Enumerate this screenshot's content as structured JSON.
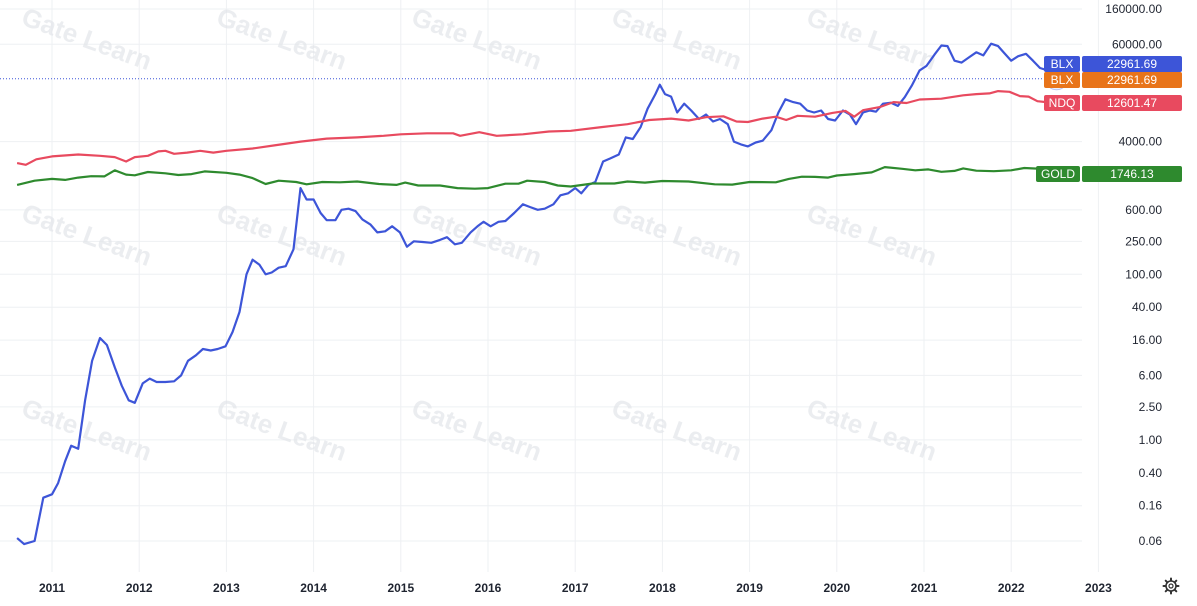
{
  "chart_data": {
    "type": "line",
    "title": "",
    "xlabel": "",
    "ylabel": "",
    "y_scale": "log",
    "grid": true,
    "watermark": "Gate Learn",
    "x_ticks": [
      "2011",
      "2012",
      "2013",
      "2014",
      "2015",
      "2016",
      "2017",
      "2018",
      "2019",
      "2020",
      "2021",
      "2022",
      "2023"
    ],
    "y_ticks": [
      {
        "value": 160000,
        "label": "160000.00"
      },
      {
        "value": 60000,
        "label": "60000.00"
      },
      {
        "value": 4000,
        "label": "4000.00"
      },
      {
        "value": 600,
        "label": "600.00"
      },
      {
        "value": 250,
        "label": "250.00"
      },
      {
        "value": 100,
        "label": "100.00"
      },
      {
        "value": 40,
        "label": "40.00"
      },
      {
        "value": 16,
        "label": "16.00"
      },
      {
        "value": 6,
        "label": "6.00"
      },
      {
        "value": 2.5,
        "label": "2.50"
      },
      {
        "value": 1,
        "label": "1.00"
      },
      {
        "value": 0.4,
        "label": "0.40"
      },
      {
        "value": 0.16,
        "label": "0.16"
      },
      {
        "value": 0.06,
        "label": "0.06"
      }
    ],
    "series": [
      {
        "name": "BLX",
        "color": "#3d55d8",
        "last_value_label": "22961.69",
        "points": [
          [
            2010.6,
            0.065
          ],
          [
            2010.68,
            0.055
          ],
          [
            2010.8,
            0.06
          ],
          [
            2010.9,
            0.2
          ],
          [
            2011.0,
            0.22
          ],
          [
            2011.07,
            0.3
          ],
          [
            2011.15,
            0.55
          ],
          [
            2011.22,
            0.85
          ],
          [
            2011.3,
            0.78
          ],
          [
            2011.38,
            3.0
          ],
          [
            2011.46,
            9.0
          ],
          [
            2011.55,
            17.0
          ],
          [
            2011.63,
            14.0
          ],
          [
            2011.72,
            7.5
          ],
          [
            2011.8,
            4.5
          ],
          [
            2011.88,
            3.0
          ],
          [
            2011.95,
            2.8
          ],
          [
            2012.04,
            4.8
          ],
          [
            2012.12,
            5.5
          ],
          [
            2012.2,
            5.0
          ],
          [
            2012.3,
            5.0
          ],
          [
            2012.4,
            5.1
          ],
          [
            2012.48,
            6.0
          ],
          [
            2012.56,
            9.0
          ],
          [
            2012.65,
            10.5
          ],
          [
            2012.73,
            12.5
          ],
          [
            2012.82,
            12.0
          ],
          [
            2012.9,
            12.5
          ],
          [
            2012.99,
            13.5
          ],
          [
            2013.07,
            20.0
          ],
          [
            2013.15,
            35.0
          ],
          [
            2013.23,
            100.0
          ],
          [
            2013.3,
            150.0
          ],
          [
            2013.38,
            130.0
          ],
          [
            2013.45,
            100.0
          ],
          [
            2013.52,
            105.0
          ],
          [
            2013.6,
            120.0
          ],
          [
            2013.68,
            125.0
          ],
          [
            2013.77,
            200.0
          ],
          [
            2013.85,
            1100.0
          ],
          [
            2013.92,
            800.0
          ],
          [
            2014.0,
            800.0
          ],
          [
            2014.08,
            550.0
          ],
          [
            2014.15,
            450.0
          ],
          [
            2014.25,
            450.0
          ],
          [
            2014.32,
            600.0
          ],
          [
            2014.4,
            620.0
          ],
          [
            2014.48,
            580.0
          ],
          [
            2014.56,
            460.0
          ],
          [
            2014.65,
            400.0
          ],
          [
            2014.73,
            320.0
          ],
          [
            2014.82,
            330.0
          ],
          [
            2014.9,
            380.0
          ],
          [
            2014.99,
            320.0
          ],
          [
            2015.07,
            215.0
          ],
          [
            2015.15,
            250.0
          ],
          [
            2015.25,
            245.0
          ],
          [
            2015.35,
            240.0
          ],
          [
            2015.45,
            260.0
          ],
          [
            2015.53,
            280.0
          ],
          [
            2015.62,
            230.0
          ],
          [
            2015.7,
            240.0
          ],
          [
            2015.8,
            320.0
          ],
          [
            2015.88,
            380.0
          ],
          [
            2015.95,
            430.0
          ],
          [
            2016.03,
            380.0
          ],
          [
            2016.12,
            430.0
          ],
          [
            2016.2,
            440.0
          ],
          [
            2016.3,
            550.0
          ],
          [
            2016.4,
            700.0
          ],
          [
            2016.48,
            650.0
          ],
          [
            2016.57,
            600.0
          ],
          [
            2016.65,
            620.0
          ],
          [
            2016.75,
            700.0
          ],
          [
            2016.83,
            900.0
          ],
          [
            2016.92,
            950.0
          ],
          [
            2017.0,
            1100.0
          ],
          [
            2017.07,
            950.0
          ],
          [
            2017.15,
            1200.0
          ],
          [
            2017.23,
            1300.0
          ],
          [
            2017.32,
            2300.0
          ],
          [
            2017.4,
            2500.0
          ],
          [
            2017.5,
            2800.0
          ],
          [
            2017.58,
            4500.0
          ],
          [
            2017.66,
            4300.0
          ],
          [
            2017.75,
            6000.0
          ],
          [
            2017.83,
            10000.0
          ],
          [
            2017.92,
            15000.0
          ],
          [
            2017.97,
            19500.0
          ],
          [
            2018.03,
            15000.0
          ],
          [
            2018.1,
            14000.0
          ],
          [
            2018.17,
            9000.0
          ],
          [
            2018.25,
            11500.0
          ],
          [
            2018.33,
            9500.0
          ],
          [
            2018.42,
            7500.0
          ],
          [
            2018.5,
            8500.0
          ],
          [
            2018.58,
            7000.0
          ],
          [
            2018.66,
            7500.0
          ],
          [
            2018.75,
            6500.0
          ],
          [
            2018.82,
            4000.0
          ],
          [
            2018.9,
            3700.0
          ],
          [
            2018.98,
            3500.0
          ],
          [
            2019.07,
            3900.0
          ],
          [
            2019.15,
            4100.0
          ],
          [
            2019.25,
            5500.0
          ],
          [
            2019.33,
            9000.0
          ],
          [
            2019.41,
            13000.0
          ],
          [
            2019.5,
            12000.0
          ],
          [
            2019.58,
            11500.0
          ],
          [
            2019.66,
            9500.0
          ],
          [
            2019.74,
            9000.0
          ],
          [
            2019.82,
            9500.0
          ],
          [
            2019.9,
            7500.0
          ],
          [
            2019.98,
            7200.0
          ],
          [
            2020.07,
            9500.0
          ],
          [
            2020.15,
            8500.0
          ],
          [
            2020.22,
            6500.0
          ],
          [
            2020.3,
            9000.0
          ],
          [
            2020.38,
            9500.0
          ],
          [
            2020.45,
            9200.0
          ],
          [
            2020.53,
            11500.0
          ],
          [
            2020.62,
            11800.0
          ],
          [
            2020.7,
            10800.0
          ],
          [
            2020.78,
            13800.0
          ],
          [
            2020.86,
            19000.0
          ],
          [
            2020.95,
            29000.0
          ],
          [
            2021.03,
            33000.0
          ],
          [
            2021.12,
            45000.0
          ],
          [
            2021.2,
            58000.0
          ],
          [
            2021.27,
            57000.0
          ],
          [
            2021.35,
            38000.0
          ],
          [
            2021.43,
            36000.0
          ],
          [
            2021.52,
            42000.0
          ],
          [
            2021.6,
            48000.0
          ],
          [
            2021.68,
            44000.0
          ],
          [
            2021.77,
            61000.0
          ],
          [
            2021.85,
            57000.0
          ],
          [
            2021.92,
            47000.0
          ],
          [
            2022.0,
            38000.0
          ],
          [
            2022.08,
            43000.0
          ],
          [
            2022.17,
            46000.0
          ],
          [
            2022.25,
            38000.0
          ],
          [
            2022.33,
            31000.0
          ],
          [
            2022.42,
            29000.0
          ],
          [
            2022.47,
            20000.0
          ],
          [
            2022.52,
            22961.69
          ]
        ]
      },
      {
        "name": "BLX",
        "color": "#e8741a",
        "last_value_label": "22961.69",
        "points": []
      },
      {
        "name": "NDQ",
        "color": "#e84a5f",
        "last_value_label": "12601.47",
        "points": [
          [
            2010.6,
            2200
          ],
          [
            2010.7,
            2100
          ],
          [
            2010.82,
            2450
          ],
          [
            2011.0,
            2650
          ],
          [
            2011.3,
            2800
          ],
          [
            2011.55,
            2700
          ],
          [
            2011.72,
            2600
          ],
          [
            2011.85,
            2300
          ],
          [
            2011.95,
            2600
          ],
          [
            2012.1,
            2700
          ],
          [
            2012.22,
            3050
          ],
          [
            2012.3,
            3100
          ],
          [
            2012.4,
            2850
          ],
          [
            2012.55,
            2950
          ],
          [
            2012.7,
            3100
          ],
          [
            2012.85,
            2950
          ],
          [
            2013.0,
            3100
          ],
          [
            2013.3,
            3300
          ],
          [
            2013.55,
            3600
          ],
          [
            2013.85,
            4000
          ],
          [
            2014.15,
            4350
          ],
          [
            2014.5,
            4500
          ],
          [
            2014.8,
            4700
          ],
          [
            2015.0,
            4900
          ],
          [
            2015.3,
            5050
          ],
          [
            2015.6,
            5050
          ],
          [
            2015.68,
            4700
          ],
          [
            2015.9,
            5200
          ],
          [
            2016.1,
            4700
          ],
          [
            2016.4,
            4900
          ],
          [
            2016.7,
            5300
          ],
          [
            2016.95,
            5400
          ],
          [
            2017.3,
            6000
          ],
          [
            2017.6,
            6500
          ],
          [
            2017.85,
            7300
          ],
          [
            2018.1,
            7600
          ],
          [
            2018.3,
            7200
          ],
          [
            2018.5,
            7900
          ],
          [
            2018.7,
            8100
          ],
          [
            2018.85,
            7000
          ],
          [
            2018.98,
            6900
          ],
          [
            2019.15,
            7600
          ],
          [
            2019.3,
            8000
          ],
          [
            2019.42,
            7300
          ],
          [
            2019.55,
            8200
          ],
          [
            2019.75,
            8000
          ],
          [
            2019.95,
            8900
          ],
          [
            2020.1,
            9400
          ],
          [
            2020.2,
            8000
          ],
          [
            2020.3,
            9600
          ],
          [
            2020.5,
            10500
          ],
          [
            2020.65,
            12000
          ],
          [
            2020.8,
            11700
          ],
          [
            2020.95,
            12900
          ],
          [
            2021.2,
            13200
          ],
          [
            2021.45,
            14500
          ],
          [
            2021.6,
            15000
          ],
          [
            2021.75,
            15300
          ],
          [
            2021.85,
            16300
          ],
          [
            2021.98,
            16000
          ],
          [
            2022.1,
            14200
          ],
          [
            2022.2,
            14000
          ],
          [
            2022.3,
            12300
          ],
          [
            2022.4,
            12000
          ],
          [
            2022.47,
            11200
          ],
          [
            2022.52,
            12601.47
          ]
        ]
      },
      {
        "name": "GOLD",
        "color": "#2e8a2e",
        "last_value_label": "1746.13",
        "points": [
          [
            2010.6,
            1200
          ],
          [
            2010.8,
            1350
          ],
          [
            2011.0,
            1420
          ],
          [
            2011.15,
            1380
          ],
          [
            2011.3,
            1470
          ],
          [
            2011.45,
            1530
          ],
          [
            2011.6,
            1520
          ],
          [
            2011.72,
            1800
          ],
          [
            2011.85,
            1600
          ],
          [
            2011.95,
            1570
          ],
          [
            2012.1,
            1720
          ],
          [
            2012.3,
            1660
          ],
          [
            2012.45,
            1580
          ],
          [
            2012.6,
            1620
          ],
          [
            2012.75,
            1750
          ],
          [
            2013.0,
            1680
          ],
          [
            2013.15,
            1600
          ],
          [
            2013.3,
            1450
          ],
          [
            2013.45,
            1230
          ],
          [
            2013.6,
            1350
          ],
          [
            2013.8,
            1300
          ],
          [
            2013.92,
            1220
          ],
          [
            2014.1,
            1300
          ],
          [
            2014.3,
            1290
          ],
          [
            2014.5,
            1320
          ],
          [
            2014.75,
            1230
          ],
          [
            2014.95,
            1200
          ],
          [
            2015.05,
            1280
          ],
          [
            2015.2,
            1180
          ],
          [
            2015.45,
            1180
          ],
          [
            2015.65,
            1100
          ],
          [
            2015.85,
            1080
          ],
          [
            2016.0,
            1100
          ],
          [
            2016.2,
            1240
          ],
          [
            2016.35,
            1240
          ],
          [
            2016.45,
            1350
          ],
          [
            2016.65,
            1300
          ],
          [
            2016.8,
            1180
          ],
          [
            2016.95,
            1150
          ],
          [
            2017.2,
            1250
          ],
          [
            2017.45,
            1250
          ],
          [
            2017.6,
            1320
          ],
          [
            2017.8,
            1280
          ],
          [
            2018.0,
            1340
          ],
          [
            2018.3,
            1320
          ],
          [
            2018.6,
            1220
          ],
          [
            2018.8,
            1210
          ],
          [
            2019.0,
            1300
          ],
          [
            2019.3,
            1290
          ],
          [
            2019.45,
            1420
          ],
          [
            2019.6,
            1510
          ],
          [
            2019.75,
            1500
          ],
          [
            2019.9,
            1470
          ],
          [
            2020.0,
            1560
          ],
          [
            2020.2,
            1620
          ],
          [
            2020.4,
            1700
          ],
          [
            2020.55,
            1970
          ],
          [
            2020.75,
            1880
          ],
          [
            2020.9,
            1800
          ],
          [
            2021.05,
            1850
          ],
          [
            2021.2,
            1730
          ],
          [
            2021.35,
            1770
          ],
          [
            2021.45,
            1900
          ],
          [
            2021.6,
            1780
          ],
          [
            2021.8,
            1760
          ],
          [
            2022.0,
            1800
          ],
          [
            2022.15,
            1920
          ],
          [
            2022.3,
            1890
          ],
          [
            2022.42,
            1810
          ],
          [
            2022.52,
            1746.13
          ]
        ]
      }
    ]
  }
}
